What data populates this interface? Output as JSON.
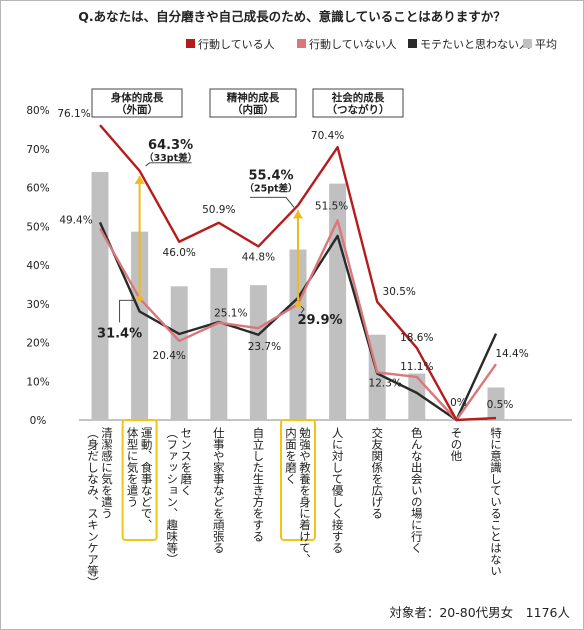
{
  "chart_data": {
    "type": "bar",
    "title": "Q.あなたは、自分磨きや自己成長のため、意識していることはありますか？",
    "legend_position": "top",
    "ylim": [
      0,
      80
    ],
    "yticks": [
      "0%",
      "10%",
      "20%",
      "30%",
      "40%",
      "50%",
      "60%",
      "70%",
      "80%"
    ],
    "grid": false,
    "categories": [
      [
        "清潔感に気を遣う",
        "（身だしなみ、スキンケア等）"
      ],
      [
        "運動、食事などで、",
        "体型に気を遣う"
      ],
      [
        "センスを磨く",
        "（ファッション、趣味等）"
      ],
      [
        "仕事や家事などを頑張る"
      ],
      [
        "自立した生き方をする"
      ],
      [
        "勉強や教養を身に着けて、",
        "内面を磨く"
      ],
      [
        "人に対して優しく接する"
      ],
      [
        "交友関係を広げる"
      ],
      [
        "色んな出会いの場に行く"
      ],
      [
        "その他"
      ],
      [
        "特に意識していることはない"
      ]
    ],
    "series": [
      {
        "name": "行動している人",
        "type": "line",
        "color": "#b71c1c",
        "values": [
          76.1,
          64.3,
          46.0,
          50.9,
          44.8,
          55.4,
          70.4,
          30.5,
          18.6,
          0,
          0.5
        ]
      },
      {
        "name": "行動していない人",
        "type": "line",
        "color": "#d9777a",
        "values": [
          49.4,
          31.4,
          20.4,
          25.1,
          23.7,
          29.9,
          51.5,
          12.3,
          11.1,
          0,
          14.4
        ]
      },
      {
        "name": "モテたいと思わない人",
        "type": "line",
        "color": "#2a2a2a",
        "values": [
          51.0,
          28.0,
          22.2,
          25.3,
          22.0,
          31.5,
          47.5,
          12.0,
          7.0,
          0,
          22.3
        ]
      },
      {
        "name": "平均",
        "type": "bar",
        "color": "#c0c0c0",
        "values": [
          64.0,
          48.6,
          34.5,
          39.2,
          34.8,
          44.0,
          61.0,
          22.0,
          12.0,
          0.2,
          8.4
        ]
      }
    ],
    "data_labels": [
      "76.1%",
      "64.3%",
      "46.0%",
      "50.9%",
      "44.8%",
      "55.4%",
      "70.4%",
      "30.5%",
      "18.6%",
      "0%",
      "0.5%",
      "49.4%",
      "31.4%",
      "20.4%",
      "25.1%",
      "23.7%",
      "29.9%",
      "51.5%",
      "12.3%",
      "11.1%",
      "14.4%"
    ],
    "highlighted_categories": [
      1,
      5
    ],
    "groups": [
      {
        "lines": [
          "身体的成長",
          "（外面）"
        ]
      },
      {
        "lines": [
          "精神的成長",
          "（内面）"
        ]
      },
      {
        "lines": [
          "社会的成長",
          "（つながり）"
        ]
      }
    ],
    "annotations": [
      {
        "category": 1,
        "value": "64.3%",
        "diff": "（33pt差）"
      },
      {
        "category": 5,
        "value": "55.4%",
        "diff": "（25pt差）"
      }
    ]
  },
  "footer": "対象者：20-80代男女　1176人"
}
